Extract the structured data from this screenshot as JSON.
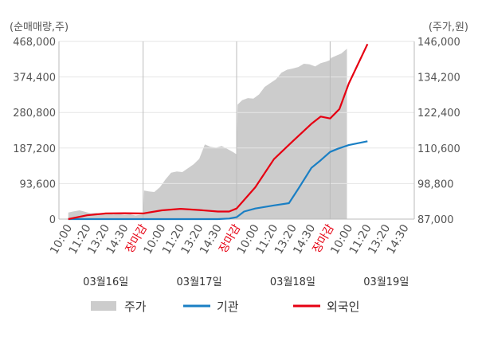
{
  "chart_data": {
    "type": "line",
    "left_axis_unit": "(순매매량,주)",
    "right_axis_unit": "(주가,원)",
    "left_ticks": [
      "0",
      "93,600",
      "187,200",
      "280,800",
      "374,400",
      "468,000"
    ],
    "right_ticks": [
      "87,000",
      "98,800",
      "110,600",
      "122,400",
      "134,200",
      "146,000"
    ],
    "left_ylim": [
      0,
      468000
    ],
    "right_ylim": [
      87000,
      146000
    ],
    "x_tick_labels": [
      "10:00",
      "11:20",
      "13:20",
      "14:30",
      "장마감",
      "10:00",
      "11:20",
      "13:20",
      "14:30",
      "장마감",
      "10:00",
      "11:20",
      "13:20",
      "14:30",
      "장마감",
      "10:00",
      "11:20",
      "13:20",
      "14:30"
    ],
    "date_labels": [
      "03월16일",
      "03월17일",
      "03월18일",
      "03월19일"
    ],
    "close_index": [
      4,
      9,
      14
    ],
    "legend": [
      {
        "name": "주가",
        "color": "#cccccc"
      },
      {
        "name": "기관",
        "color": "#1a7fc4"
      },
      {
        "name": "외국인",
        "color": "#e60012"
      }
    ],
    "price": {
      "x": [
        0.0,
        0.3,
        0.6,
        0.9,
        1.2,
        1.5,
        1.8,
        2.1,
        2.4,
        2.7,
        3.0,
        3.3,
        3.6,
        4.0,
        4.05,
        4.3,
        4.6,
        4.9,
        5.2,
        5.5,
        5.8,
        6.1,
        6.4,
        6.7,
        7.0,
        7.3,
        7.6,
        7.9,
        8.2,
        8.5,
        8.8,
        9.0,
        9.05,
        9.3,
        9.6,
        9.9,
        10.2,
        10.5,
        10.8,
        11.1,
        11.4,
        11.7,
        12.0,
        12.3,
        12.6,
        12.9,
        13.2,
        13.5,
        13.8,
        14.0,
        14.05,
        14.3,
        14.6,
        14.9
      ],
      "values": [
        89200,
        89600,
        89900,
        89400,
        88900,
        89100,
        88700,
        88900,
        88500,
        88700,
        88400,
        88600,
        88200,
        88600,
        96500,
        96200,
        96000,
        97600,
        100200,
        102400,
        102800,
        102600,
        103900,
        105200,
        107000,
        111800,
        111000,
        110700,
        111300,
        110300,
        109300,
        108500,
        125000,
        126500,
        127200,
        127000,
        128400,
        130900,
        132200,
        133400,
        135600,
        136600,
        137000,
        137500,
        138600,
        138400,
        137700,
        138800,
        139300,
        139800,
        140500,
        141200,
        142000,
        143600
      ]
    },
    "series": [
      {
        "name": "기관",
        "x": [
          0,
          1,
          2,
          3,
          4,
          5,
          6,
          7,
          7.7,
          8,
          8.6,
          9,
          9.4,
          10,
          11,
          11.8,
          12.3,
          13,
          13.5,
          14,
          14.4,
          15,
          16
        ],
        "values": [
          0,
          0,
          0,
          0,
          0,
          0,
          0,
          0,
          0,
          0,
          1500,
          5000,
          20000,
          28000,
          36000,
          42000,
          80000,
          135000,
          155000,
          177000,
          185000,
          195000,
          205000
        ]
      },
      {
        "name": "외국인",
        "x": [
          0,
          1,
          2,
          3,
          4,
          5,
          6,
          7,
          8,
          8.6,
          9,
          10,
          11,
          12,
          13,
          13.5,
          14,
          14.5,
          15,
          16
        ],
        "values": [
          0,
          10000,
          15000,
          15500,
          15000,
          23000,
          27000,
          24000,
          20000,
          20000,
          28000,
          84000,
          158000,
          205000,
          251000,
          270000,
          265000,
          290000,
          357000,
          461000
        ]
      }
    ]
  }
}
